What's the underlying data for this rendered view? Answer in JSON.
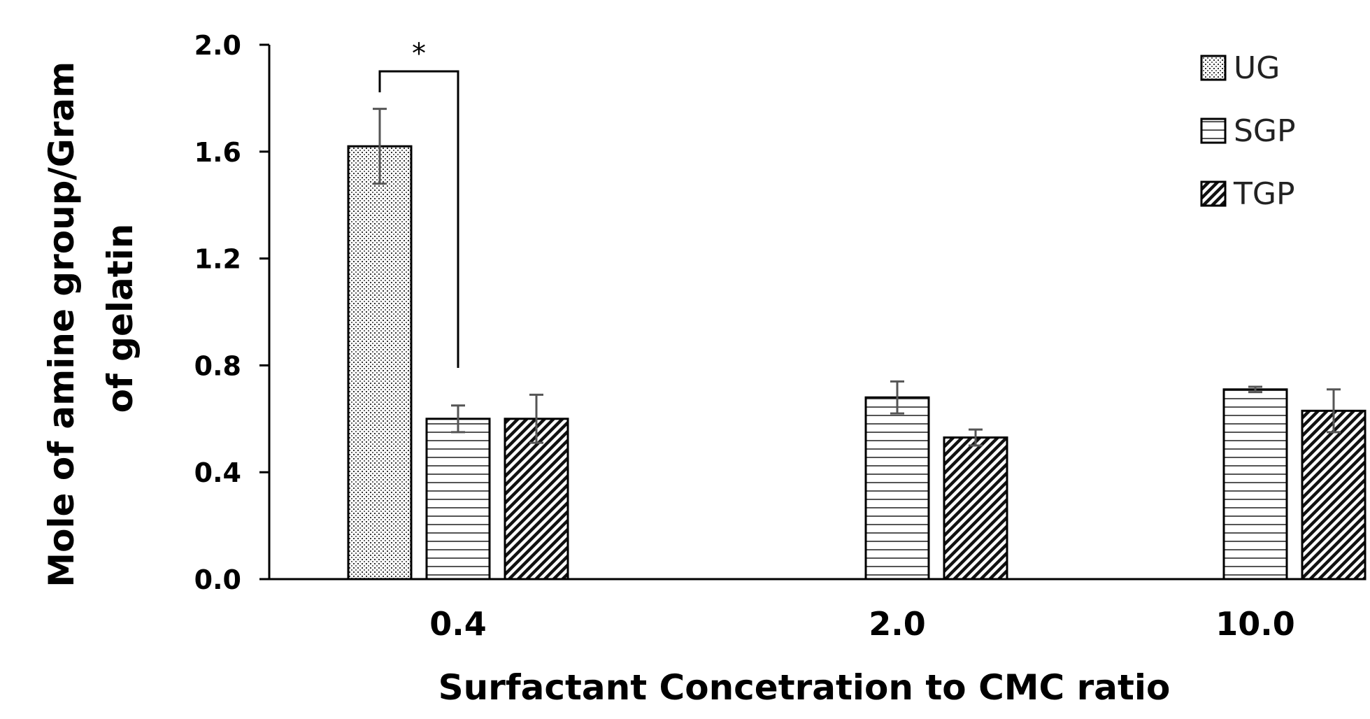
{
  "chart_data": {
    "type": "bar",
    "categories": [
      "0.4",
      "2.0",
      "10.0"
    ],
    "series": [
      {
        "name": "UG",
        "values": [
          1.62,
          null,
          null
        ],
        "errors": [
          0.14,
          null,
          null
        ],
        "pattern": "dots"
      },
      {
        "name": "SGP",
        "values": [
          0.6,
          0.68,
          0.71
        ],
        "errors": [
          0.05,
          0.06,
          0.01
        ],
        "pattern": "horizontal"
      },
      {
        "name": "TGP",
        "values": [
          0.6,
          0.53,
          0.63
        ],
        "errors": [
          0.09,
          0.03,
          0.08
        ],
        "pattern": "diagonal"
      }
    ],
    "title": "",
    "xlabel": "Surfactant Concetration to CMC ratio",
    "ylabel_lines": [
      "Mole of amine group/Gram",
      "of gelatin"
    ],
    "ylim": [
      0.0,
      2.0
    ],
    "yticks": [
      "0.0",
      "0.4",
      "0.8",
      "1.2",
      "1.6",
      "2.0"
    ],
    "legend_position": "top-right",
    "grid": false,
    "annotations": [
      {
        "text": "*",
        "between": [
          "UG@0.4",
          "SGP@0.4"
        ]
      }
    ]
  }
}
